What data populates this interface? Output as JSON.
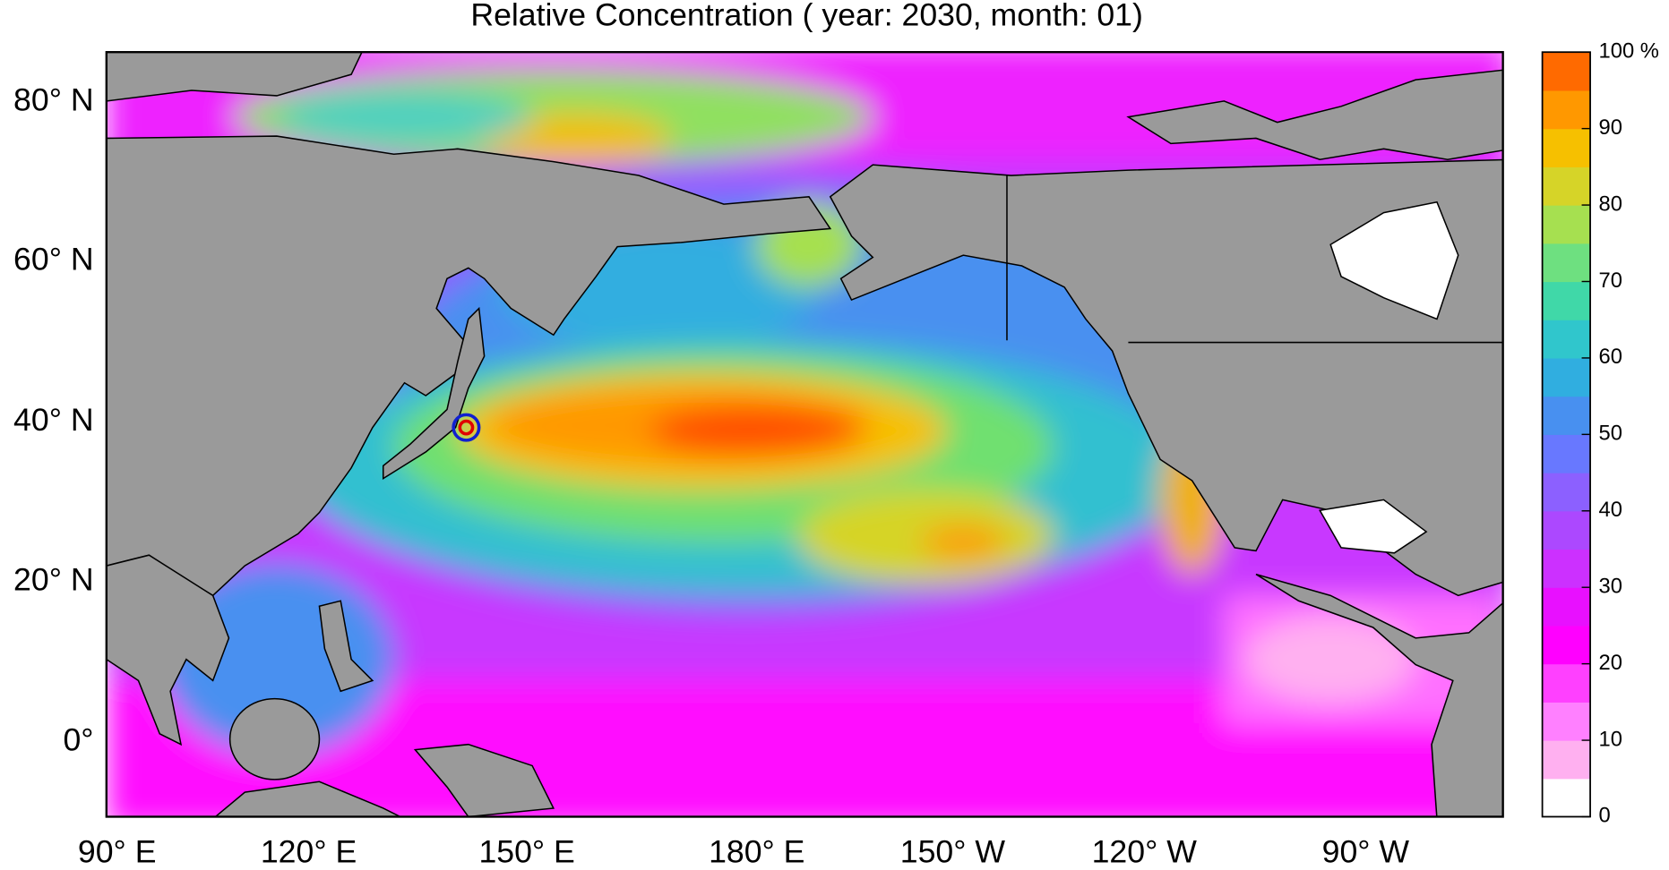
{
  "title": "Relative Concentration ( year: 2030, month: 01)",
  "lat_labels": [
    "80° N",
    "60° N",
    "40° N",
    "20° N",
    "0°"
  ],
  "lon_labels": [
    "90° E",
    "120° E",
    "150° E",
    "180° E",
    "150° W",
    "120° W",
    "90° W"
  ],
  "colorbar": {
    "lim": [
      0,
      100
    ],
    "ticks": [
      0,
      10,
      20,
      30,
      40,
      50,
      60,
      70,
      80,
      90,
      {
        "value": 100,
        "label": "100 %"
      }
    ],
    "colors": [
      "#ffffff",
      "#ffb0f0",
      "#ff80ff",
      "#ff40ff",
      "#ff00ff",
      "#e810ff",
      "#cc30ff",
      "#ac48ff",
      "#8c60ff",
      "#6878ff",
      "#4890f0",
      "#30aee0",
      "#30c6cc",
      "#40d8a8",
      "#6ee080",
      "#a6e050",
      "#d6d428",
      "#f6c000",
      "#ff9800",
      "#ff6a00"
    ]
  }
}
